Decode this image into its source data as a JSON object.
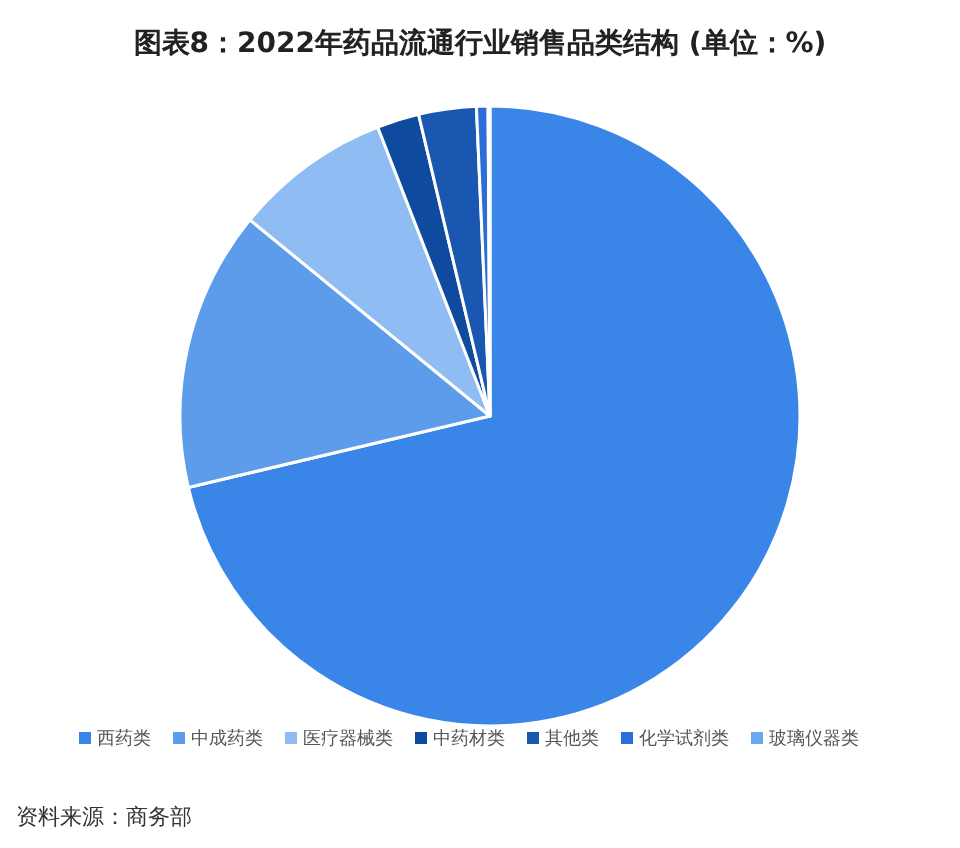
{
  "chart_data": {
    "type": "pie",
    "title": "图表8：2022年药品流通行业销售品类结构 (单位：%)",
    "categories": [
      "西药类",
      "中成药类",
      "医疗器械类",
      "中药材类",
      "其他类",
      "化学试剂类",
      "玻璃仪器类"
    ],
    "values": [
      71.3,
      14.6,
      8.2,
      2.2,
      3.0,
      0.6,
      0.1
    ],
    "colors": [
      "#3a86e8",
      "#5d9cea",
      "#8fbcf2",
      "#0e4a9e",
      "#1957b0",
      "#2a6fd6",
      "#6aa7ee"
    ],
    "legend": "bottom",
    "annotations": [
      "资料来源：商务部"
    ]
  }
}
